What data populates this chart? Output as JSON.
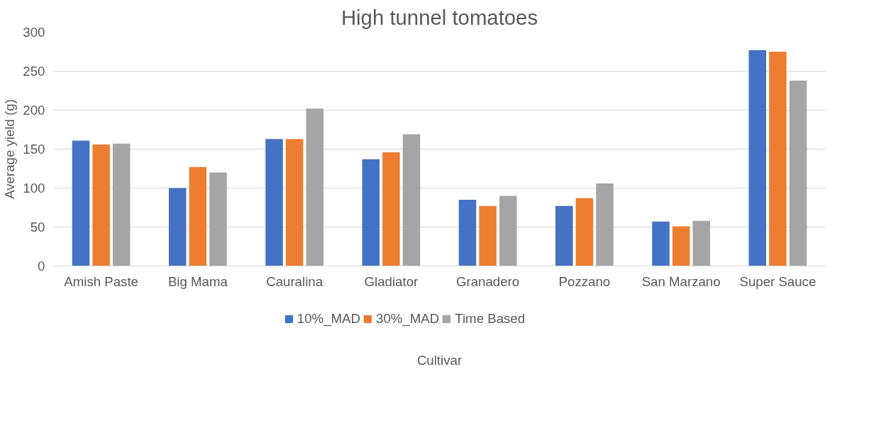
{
  "chart_data": {
    "type": "bar",
    "title": "High tunnel tomatoes",
    "xlabel": "Cultivar",
    "ylabel": "Average yield (g)",
    "categories": [
      "Amish Paste",
      "Big Mama",
      "Cauralina",
      "Gladiator",
      "Granadero",
      "Pozzano",
      "San Marzano",
      "Super Sauce"
    ],
    "series": [
      {
        "name": "10%_MAD",
        "color": "#4472c4",
        "values": [
          161,
          100,
          163,
          137,
          85,
          77,
          57,
          277
        ]
      },
      {
        "name": "30%_MAD",
        "color": "#ed7d31",
        "values": [
          156,
          127,
          163,
          146,
          77,
          87,
          51,
          275
        ]
      },
      {
        "name": "Time Based",
        "color": "#a5a5a5",
        "values": [
          157,
          120,
          202,
          169,
          90,
          106,
          58,
          238
        ]
      }
    ],
    "ylim": [
      0,
      300
    ],
    "yticks": [
      0,
      50,
      100,
      150,
      200,
      250,
      300
    ],
    "grid": "y",
    "legend": "bottom"
  }
}
